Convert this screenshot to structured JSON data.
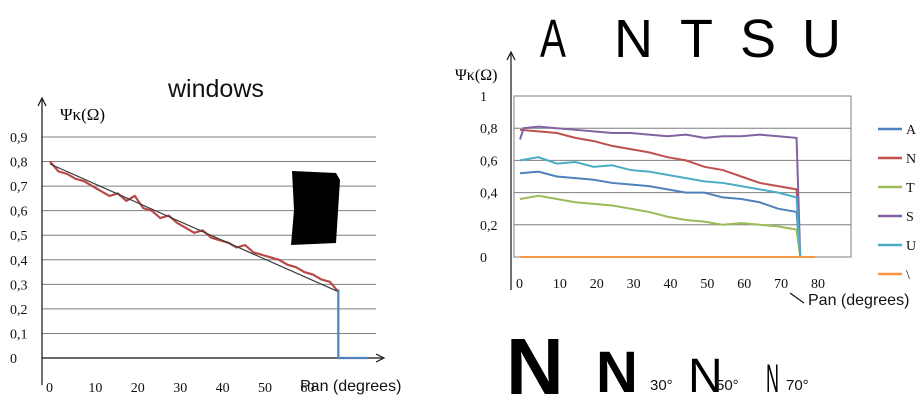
{
  "chart_data": [
    {
      "type": "line",
      "title": "windows",
      "ylabel": "Ψκ(Ω)",
      "xlabel": "Pan (degrees)",
      "xlim": [
        0,
        75
      ],
      "ylim": [
        0,
        0.9
      ],
      "x_ticks": [
        "0",
        "10",
        "20",
        "30",
        "40",
        "50",
        "60"
      ],
      "y_ticks": [
        "0",
        "0,1",
        "0,2",
        "0,3",
        "0,4",
        "0,5",
        "0,6",
        "0,7",
        "0,8",
        "0,9"
      ],
      "grid": true,
      "series": [
        {
          "color": "#b94a48",
          "x": [
            0,
            2,
            4,
            6,
            8,
            10,
            12,
            14,
            16,
            18,
            20,
            22,
            24,
            26,
            28,
            30,
            32,
            34,
            36,
            38,
            40,
            42,
            44,
            46,
            48,
            50,
            52,
            54,
            56,
            58,
            60,
            62,
            64,
            66,
            68
          ],
          "y": [
            0.8,
            0.76,
            0.75,
            0.73,
            0.72,
            0.7,
            0.68,
            0.66,
            0.67,
            0.64,
            0.66,
            0.61,
            0.6,
            0.57,
            0.58,
            0.55,
            0.53,
            0.51,
            0.52,
            0.49,
            0.48,
            0.47,
            0.45,
            0.46,
            0.43,
            0.42,
            0.41,
            0.4,
            0.38,
            0.37,
            0.35,
            0.34,
            0.32,
            0.31,
            0.27
          ]
        },
        {
          "color": "#3a3a3a",
          "x": [
            0,
            68
          ],
          "y": [
            0.79,
            0.27
          ]
        },
        {
          "color": "#4f81bd",
          "x": [
            68,
            68,
            75
          ],
          "y": [
            0.28,
            0.0,
            0.0
          ]
        }
      ]
    },
    {
      "type": "line",
      "title": "",
      "ylabel": "Ψκ(Ω)",
      "xlabel": "Pan (degrees)",
      "xlim": [
        0,
        80
      ],
      "ylim": [
        0,
        1
      ],
      "x_ticks": [
        "0",
        "10",
        "20",
        "30",
        "40",
        "50",
        "60",
        "70",
        "80"
      ],
      "y_ticks": [
        "0",
        "0,2",
        "0,4",
        "0,6",
        "0,8",
        "1"
      ],
      "grid": true,
      "legend_position": "right",
      "series": [
        {
          "name": "A",
          "color": "#4f81bd",
          "x": [
            0,
            5,
            10,
            15,
            20,
            25,
            30,
            35,
            40,
            45,
            50,
            55,
            60,
            65,
            70,
            75,
            76
          ],
          "y": [
            0.52,
            0.53,
            0.5,
            0.49,
            0.48,
            0.46,
            0.45,
            0.44,
            0.42,
            0.4,
            0.4,
            0.37,
            0.36,
            0.34,
            0.3,
            0.28,
            0.0
          ]
        },
        {
          "name": "N",
          "color": "#c0504d",
          "x": [
            0,
            5,
            10,
            15,
            20,
            25,
            30,
            35,
            40,
            45,
            50,
            55,
            60,
            65,
            70,
            75,
            76
          ],
          "y": [
            0.79,
            0.78,
            0.77,
            0.74,
            0.72,
            0.69,
            0.67,
            0.65,
            0.62,
            0.6,
            0.56,
            0.54,
            0.5,
            0.46,
            0.44,
            0.42,
            0.0
          ]
        },
        {
          "name": "T",
          "color": "#9bbb59",
          "x": [
            0,
            5,
            10,
            15,
            20,
            25,
            30,
            35,
            40,
            45,
            50,
            55,
            60,
            65,
            70,
            75,
            76
          ],
          "y": [
            0.36,
            0.38,
            0.36,
            0.34,
            0.33,
            0.32,
            0.3,
            0.28,
            0.25,
            0.23,
            0.22,
            0.2,
            0.21,
            0.2,
            0.19,
            0.17,
            0.0
          ]
        },
        {
          "name": "S",
          "color": "#8064a2",
          "x": [
            0,
            1,
            5,
            10,
            15,
            20,
            25,
            30,
            35,
            40,
            45,
            50,
            55,
            60,
            65,
            70,
            75,
            76
          ],
          "y": [
            0.73,
            0.8,
            0.81,
            0.8,
            0.79,
            0.78,
            0.77,
            0.77,
            0.76,
            0.75,
            0.76,
            0.74,
            0.75,
            0.75,
            0.76,
            0.75,
            0.74,
            0.0
          ]
        },
        {
          "name": "U",
          "color": "#4bacc6",
          "x": [
            0,
            5,
            10,
            15,
            20,
            25,
            30,
            35,
            40,
            45,
            50,
            55,
            60,
            65,
            70,
            75,
            76
          ],
          "y": [
            0.6,
            0.62,
            0.58,
            0.59,
            0.56,
            0.57,
            0.54,
            0.53,
            0.51,
            0.49,
            0.47,
            0.46,
            0.44,
            0.42,
            0.4,
            0.37,
            0.0
          ]
        },
        {
          "name": "\\",
          "color": "#f79646",
          "x": [
            0,
            80
          ],
          "y": [
            0.0,
            0.0
          ]
        }
      ]
    }
  ],
  "letters": [
    "A",
    "N",
    "T",
    "S",
    "U"
  ],
  "bottom_glyphs": [
    "N",
    "N",
    "N",
    "N"
  ],
  "angle_labels": [
    "30°",
    "50°",
    "70°"
  ]
}
